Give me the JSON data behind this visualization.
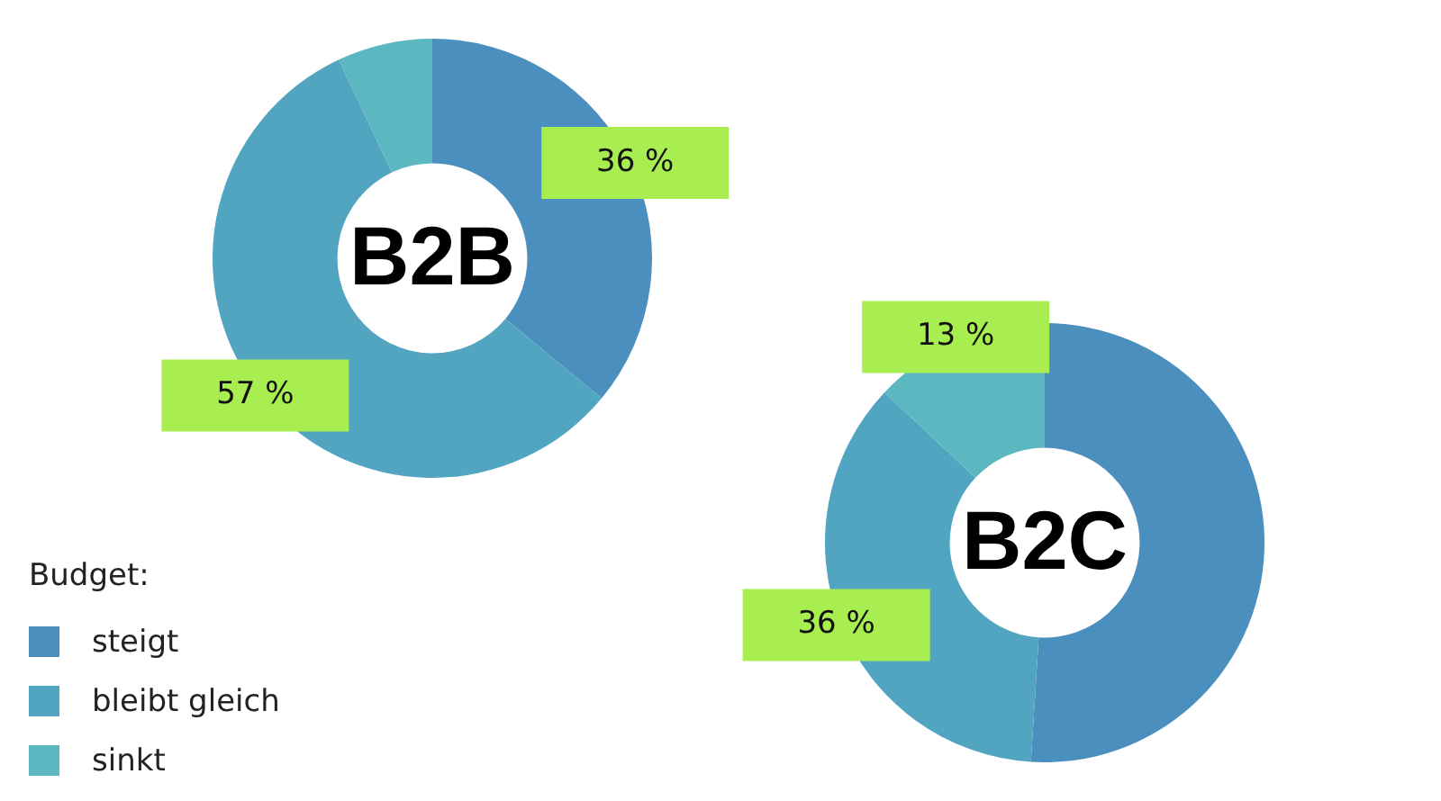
{
  "chart_data": [
    {
      "type": "donut",
      "title": "B2B",
      "categories": [
        "steigt",
        "bleibt gleich",
        "sinkt"
      ],
      "values": [
        36,
        57,
        7
      ],
      "colors": [
        "#4a8fbd",
        "#52a5c0",
        "#5cb8c0"
      ],
      "value_labels": [
        "36 %",
        "57 %",
        null
      ],
      "legend_title": "Budget:",
      "legend": "bottom left"
    },
    {
      "type": "donut",
      "title": "B2C",
      "categories": [
        null,
        null,
        null
      ],
      "values": [
        51,
        36,
        13
      ],
      "colors": [
        "#4a8fbd",
        "#52a5c0",
        "#5cb8c0"
      ],
      "value_labels": [
        null,
        "36 %",
        "13 %"
      ]
    }
  ]
}
